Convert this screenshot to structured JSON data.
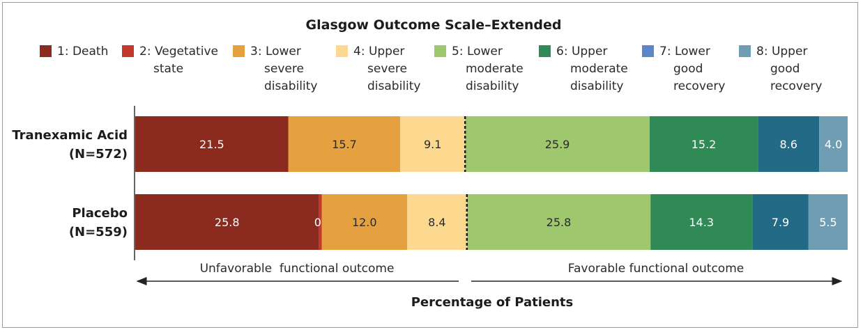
{
  "chart_data": {
    "type": "bar",
    "orientation": "horizontal-stacked",
    "title": "Glasgow Outcome Scale–Extended",
    "xlabel": "Percentage of Patients",
    "legend_placement": "top",
    "categories": [
      {
        "name": "1: Death",
        "lines": [
          "1: Death"
        ],
        "color": "#8b2a1e"
      },
      {
        "name": "2: Vegetative state",
        "lines": [
          "2: Vegetative",
          "state"
        ],
        "color": "#c0392b"
      },
      {
        "name": "3: Lower severe disability",
        "lines": [
          "3: Lower",
          "severe",
          "disability"
        ],
        "color": "#e5a03f"
      },
      {
        "name": "4: Upper severe disability",
        "lines": [
          "4: Upper",
          "severe",
          "disability"
        ],
        "color": "#fdd98f"
      },
      {
        "name": "5: Lower moderate disability",
        "lines": [
          "5: Lower",
          "moderate",
          "disability"
        ],
        "color": "#9fc76d"
      },
      {
        "name": "6: Upper moderate disability",
        "lines": [
          "6: Upper",
          "moderate",
          "disability"
        ],
        "color": "#2f8a56"
      },
      {
        "name": "7: Lower good recovery",
        "lines": [
          "7: Lower",
          "good",
          "recovery"
        ],
        "color": "#236a86"
      },
      {
        "name": "8: Upper good recovery",
        "lines": [
          "8: Upper",
          "good",
          "recovery"
        ],
        "color": "#6f9db3"
      }
    ],
    "legend_swatch_colors": [
      "#8b2a1e",
      "#c0392b",
      "#e5a03f",
      "#fdd98f",
      "#9fc76d",
      "#2f8a56",
      "#5b86c8",
      "#6f9db3"
    ],
    "series": [
      {
        "name": "Tranexamic Acid",
        "label_lines": [
          "Tranexamic Acid",
          "(N=572)"
        ],
        "values": [
          21.5,
          0.0,
          15.7,
          9.1,
          25.9,
          15.2,
          8.6,
          4.0
        ],
        "labels": [
          "21.5",
          "",
          "15.7",
          "9.1",
          "25.9",
          "15.2",
          "8.6",
          "4.0"
        ]
      },
      {
        "name": "Placebo",
        "label_lines": [
          "Placebo",
          "(N=559)"
        ],
        "values": [
          25.8,
          0.4,
          12.0,
          8.4,
          25.8,
          14.3,
          7.9,
          5.5
        ],
        "labels": [
          "25.8",
          "0.4",
          "12.0",
          "8.4",
          "25.8",
          "14.3",
          "7.9",
          "5.5"
        ]
      }
    ],
    "divider_after_category": 4,
    "outcome_labels": {
      "unfavorable": "Unfavorable  functional outcome",
      "favorable": "Favorable functional outcome"
    }
  }
}
